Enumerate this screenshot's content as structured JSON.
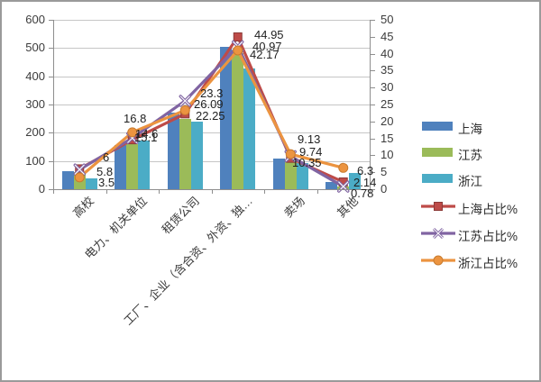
{
  "chart_data": {
    "type": "bar+line",
    "categories": [
      "高校",
      "电力、机关单位",
      "租赁公司",
      "工厂、企业（含合资、外资、独…",
      "卖场",
      "其他"
    ],
    "bar_series": [
      {
        "name": "上海",
        "color": "#4F81BD",
        "axis": "left",
        "values": [
          65,
          155,
          270,
          505,
          110,
          25
        ]
      },
      {
        "name": "江苏",
        "color": "#9BBB59",
        "axis": "left",
        "values": [
          60,
          160,
          250,
          482,
          100,
          8
        ]
      },
      {
        "name": "浙江",
        "color": "#4BACC6",
        "axis": "left",
        "values": [
          38,
          172,
          238,
          428,
          94,
          56
        ]
      }
    ],
    "line_series": [
      {
        "name": "上海占比%",
        "color": "#BE4B48",
        "marker": "square",
        "axis": "right",
        "values": [
          6,
          14.6,
          22.25,
          44.95,
          9.13,
          2.14
        ]
      },
      {
        "name": "江苏占比%",
        "color": "#8064A2",
        "marker": "x",
        "axis": "right",
        "values": [
          5.8,
          15.1,
          26.09,
          42.17,
          9.74,
          0.78
        ]
      },
      {
        "name": "浙江占比%",
        "color": "#EC9440",
        "marker": "circle",
        "axis": "right",
        "values": [
          3.5,
          16.8,
          23.3,
          40.97,
          10.35,
          6.3
        ]
      }
    ],
    "point_label_stacks": [
      {
        "texts": [
          "6",
          "5.8",
          "3.5"
        ]
      },
      {
        "texts": [
          "16.8",
          "14.6",
          "15.1"
        ]
      },
      {
        "texts": [
          "23.3",
          "26.09",
          "22.25"
        ]
      },
      {
        "texts": [
          "44.95",
          "40.97",
          "42.17"
        ]
      },
      {
        "texts": [
          "9.13",
          "9.74",
          "10.35"
        ]
      },
      {
        "texts": [
          "6.3",
          "2.14",
          "0.78"
        ]
      }
    ],
    "left_axis": {
      "min": 0,
      "max": 600,
      "step": 100,
      "ticks": [
        "600",
        "500",
        "400",
        "300",
        "200",
        "100",
        "0"
      ]
    },
    "right_axis": {
      "min": 0,
      "max": 50,
      "step": 5,
      "ticks": [
        "50",
        "45",
        "40",
        "35",
        "30",
        "25",
        "20",
        "15",
        "10",
        "5",
        "0"
      ]
    },
    "legend": [
      "上海",
      "江苏",
      "浙江",
      "上海占比%",
      "江苏占比%",
      "浙江占比%"
    ],
    "legend_position": "right",
    "grid": true,
    "colors": {
      "bar_blue": "#4F81BD",
      "bar_green": "#9BBB59",
      "bar_teal": "#4BACC6",
      "line_red": "#BE4B48",
      "line_purple": "#8064A2",
      "line_orange": "#EC9440"
    }
  }
}
